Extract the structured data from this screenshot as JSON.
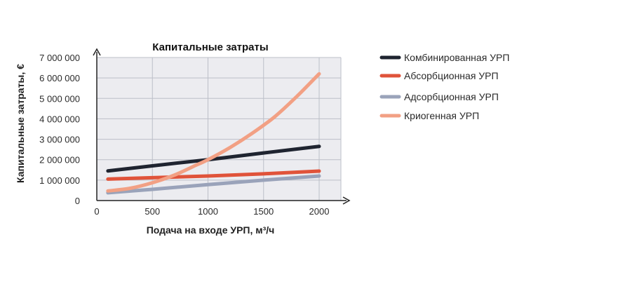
{
  "chart_data": {
    "type": "line",
    "title": "Капитальные затраты",
    "xlabel": "Подача на входе УРП, м³/ч",
    "ylabel": "Капитальные затраты, €",
    "xlim": [
      0,
      2000
    ],
    "ylim": [
      0,
      7000000
    ],
    "x_ticks": [
      0,
      500,
      1000,
      1500,
      2000
    ],
    "x_tick_labels": [
      "0",
      "500",
      "1000",
      "1500",
      "2000"
    ],
    "y_ticks": [
      0,
      1000000,
      2000000,
      3000000,
      4000000,
      5000000,
      6000000,
      7000000
    ],
    "y_tick_labels": [
      "0",
      "1 000 000",
      "2 000 000",
      "3 000 000",
      "4 000 000",
      "5 000 000",
      "6 000 000",
      "7 000 000"
    ],
    "grid": true,
    "legend_position": "right",
    "series": [
      {
        "name": "Комбинированная УРП",
        "color": "#1f2430",
        "x": [
          100,
          500,
          1000,
          1500,
          2000
        ],
        "y": [
          1450000,
          1700000,
          2000000,
          2330000,
          2650000
        ]
      },
      {
        "name": "Абсорбционная УРП",
        "color": "#e0533a",
        "x": [
          100,
          500,
          1000,
          1500,
          2000
        ],
        "y": [
          1050000,
          1120000,
          1200000,
          1310000,
          1440000
        ]
      },
      {
        "name": "Адсорбционная УРП",
        "color": "#9aa3ba",
        "x": [
          100,
          500,
          1000,
          1500,
          2000
        ],
        "y": [
          380000,
          550000,
          780000,
          1000000,
          1200000
        ]
      },
      {
        "name": "Криогенная УРП",
        "color": "#f2a084",
        "x": [
          100,
          300,
          500,
          700,
          900,
          1000,
          1200,
          1400,
          1600,
          1800,
          2000
        ],
        "y": [
          470000,
          600000,
          870000,
          1250000,
          1750000,
          2000000,
          2600000,
          3300000,
          4100000,
          5100000,
          6200000
        ]
      }
    ]
  }
}
